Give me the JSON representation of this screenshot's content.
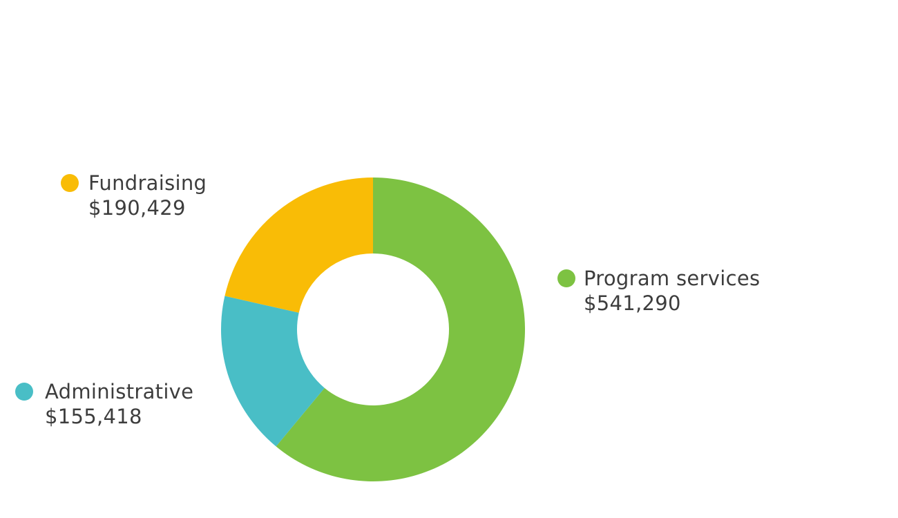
{
  "chart_data": {
    "type": "pie",
    "donut": true,
    "slices": [
      {
        "label": "Program services",
        "value": 541290,
        "display": "$541,290",
        "color": "#7dc242"
      },
      {
        "label": "Administrative",
        "value": 155418,
        "display": "$155,418",
        "color": "#49bec6"
      },
      {
        "label": "Fundraising",
        "value": 190429,
        "display": "$190,429",
        "color": "#f9bc06"
      }
    ],
    "title": "",
    "legend": "labels beside slices"
  }
}
